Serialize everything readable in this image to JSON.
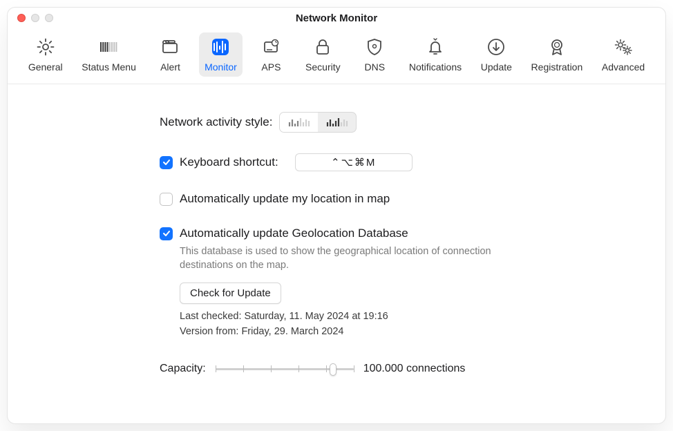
{
  "window": {
    "title": "Network Monitor"
  },
  "toolbar": {
    "items": [
      {
        "id": "general",
        "label": "General",
        "icon": "gear"
      },
      {
        "id": "statusmenu",
        "label": "Status Menu",
        "icon": "bars"
      },
      {
        "id": "alert",
        "label": "Alert",
        "icon": "folder"
      },
      {
        "id": "monitor",
        "label": "Monitor",
        "icon": "monitor-bars",
        "active": true
      },
      {
        "id": "aps",
        "label": "APS",
        "icon": "aps"
      },
      {
        "id": "security",
        "label": "Security",
        "icon": "lock"
      },
      {
        "id": "dns",
        "label": "DNS",
        "icon": "shield"
      },
      {
        "id": "notifications",
        "label": "Notifications",
        "icon": "bell"
      },
      {
        "id": "update",
        "label": "Update",
        "icon": "download"
      },
      {
        "id": "registration",
        "label": "Registration",
        "icon": "ribbon"
      },
      {
        "id": "advanced",
        "label": "Advanced",
        "icon": "gears"
      }
    ]
  },
  "activity_style": {
    "label": "Network activity style:",
    "selected_index": 0,
    "option_colors": [
      "#848484",
      "#383838"
    ]
  },
  "shortcut": {
    "checked": true,
    "label": "Keyboard shortcut:",
    "value": "⌃⌥⌘M"
  },
  "auto_location": {
    "checked": false,
    "label": "Automatically update my location in map"
  },
  "geo": {
    "checked": true,
    "label": "Automatically update Geolocation Database",
    "description": "This database is used to show the geographical location of connection destinations on the map.",
    "button": "Check for Update",
    "last_checked": "Last checked: Saturday, 11. May 2024 at 19:16",
    "version": "Version from: Friday, 29. March 2024"
  },
  "capacity": {
    "label": "Capacity:",
    "text": "100.000 connections",
    "ticks": 5,
    "knob_pct": 85
  },
  "colors": {
    "accent": "#1273ff",
    "text": "#1d1d1f",
    "muted": "#7a7a7a",
    "border": "#d8d8d8"
  }
}
